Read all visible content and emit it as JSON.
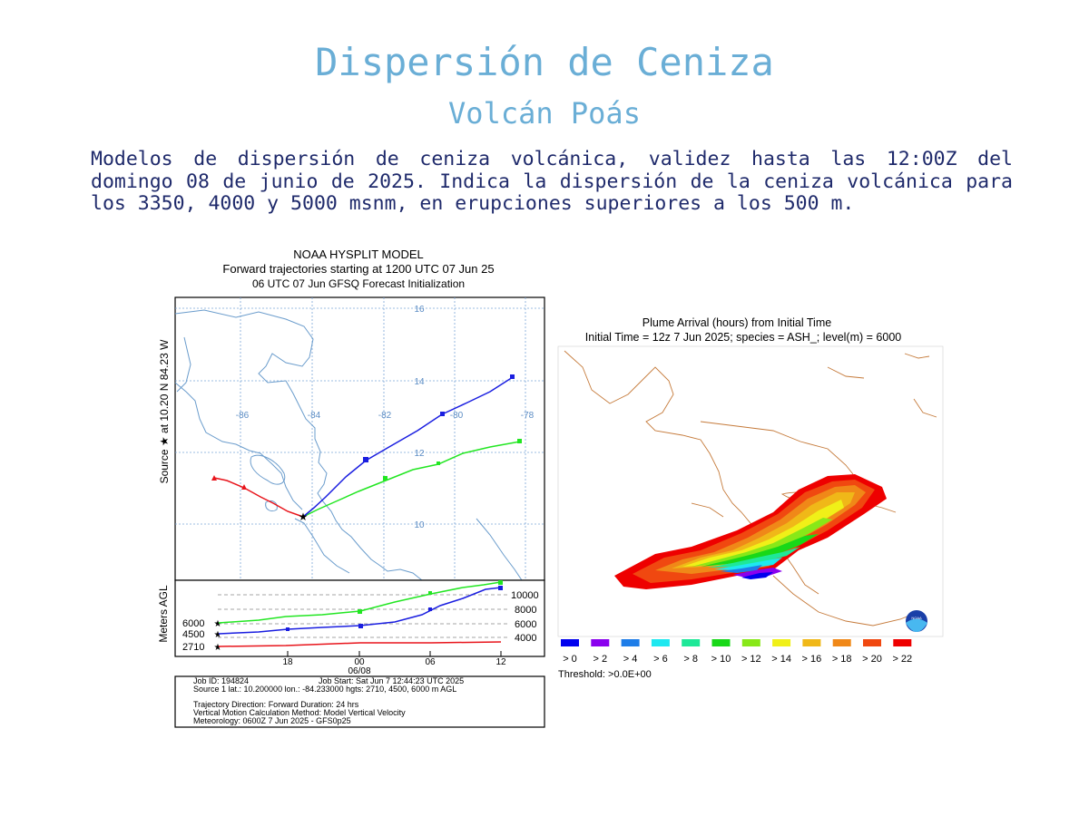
{
  "page": {
    "title": "Dispersión de Ceniza",
    "subtitle": "Volcán Poás",
    "description": "Modelos de dispersión de ceniza volcánica, validez  hasta  las  12:00Z del domingo 08 de junio de 2025. Indica la  dispersión  de  la  ceniza volcánica para los 3350, 4000 y 5000 msnm, en erupciones superiores  a los 500 m."
  },
  "trajectory": {
    "title_1": "NOAA HYSPLIT MODEL",
    "title_2": "Forward trajectories starting at 1200 UTC 07 Jun 25",
    "title_3": "06 UTC 07 Jun    GFSQ  Forecast Initialization",
    "side_label": "Source ★  at    10.20 N   84.23 W",
    "map": {
      "lon_labels": [
        "-86",
        "-84",
        "-82",
        "-80",
        "-78"
      ],
      "lat_labels": [
        "16",
        "14",
        "12",
        "10"
      ]
    },
    "height_panel": {
      "ylabel": "Meters AGL",
      "right_ticks": [
        "10000",
        "8000",
        "6000",
        "4000"
      ],
      "left_levels": [
        "6000",
        "4500",
        "2710"
      ],
      "x_ticks": [
        "18",
        "00",
        "06",
        "12"
      ],
      "date_label": "06/08"
    },
    "info": {
      "line1a": "Job ID: 194824",
      "line1b": "Job Start: Sat Jun  7 12:44:23 UTC 2025",
      "line2": "Source 1 lat.: 10.200000  lon.: -84.233000  hgts: 2710, 4500, 6000 m AGL",
      "line3": "Trajectory Direction: Forward      Duration: 24 hrs",
      "line4": "Vertical Motion Calculation Method:       Model Vertical Velocity",
      "line5": "Meteorology: 0600Z 7 Jun 2025 - GFS0p25"
    },
    "series_colors": {
      "2710": "#e8141b",
      "4500": "#1a1ee0",
      "6000": "#22e622"
    }
  },
  "plume": {
    "title_1": "Plume Arrival (hours) from Initial Time",
    "title_2": "Initial Time = 12z  7 Jun 2025;  species = ASH_;  level(m) =  6000",
    "legend": [
      {
        "label": "> 0",
        "color": "#0000ee"
      },
      {
        "label": "> 2",
        "color": "#8a00ee"
      },
      {
        "label": "> 4",
        "color": "#1e7de8"
      },
      {
        "label": "> 6",
        "color": "#1ee8f0"
      },
      {
        "label": "> 8",
        "color": "#1ee898"
      },
      {
        "label": "> 10",
        "color": "#18d818"
      },
      {
        "label": "> 12",
        "color": "#88e818"
      },
      {
        "label": "> 14",
        "color": "#f0f018"
      },
      {
        "label": "> 16",
        "color": "#f0b818"
      },
      {
        "label": "> 18",
        "color": "#f08818"
      },
      {
        "label": "> 20",
        "color": "#f04810"
      },
      {
        "label": "> 22",
        "color": "#ee0000"
      }
    ],
    "threshold": "Threshold: >0.0E+00",
    "logo": "NOAA"
  }
}
